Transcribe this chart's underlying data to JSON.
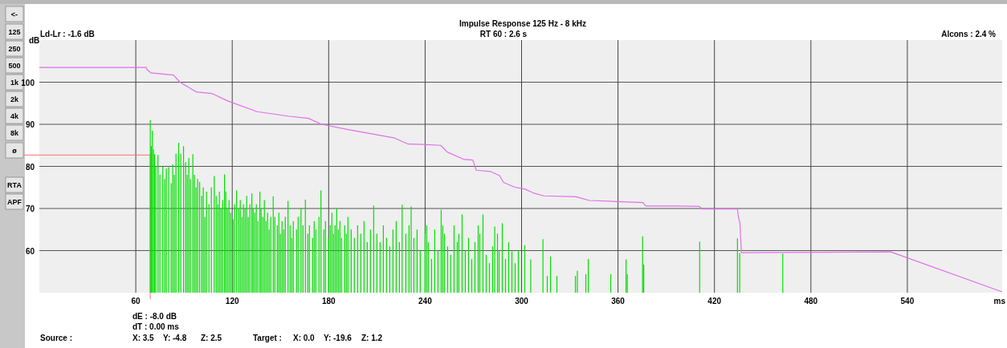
{
  "chart_data": {
    "type": "line",
    "title": "Impulse Response   125 Hz - 8 kHz",
    "xlabel": "ms",
    "ylabel": "dB",
    "xlim": [
      0,
      599
    ],
    "xticks": [
      60,
      120,
      180,
      240,
      300,
      360,
      420,
      480,
      540
    ],
    "ylim": [
      50,
      110
    ],
    "yticks": [
      60,
      70,
      80,
      90,
      100
    ],
    "grid": true,
    "ref_lines": [
      {
        "axis": "x",
        "value": 69,
        "color": "#ff7070"
      },
      {
        "axis": "y",
        "value": 82.7,
        "color": "#ff7070"
      }
    ],
    "annotations": [
      "Ld-Lr : -1.6 dB",
      "RT 60 : 2.6 s",
      "Alcons : 2.4 %",
      "dE : -8.0 dB",
      "dT : 0.00 ms",
      "Source :",
      "X: 3.5",
      "Y: -4.8",
      "Z: 2.5",
      "Target :",
      "X: 0.0",
      "Y: -19.6",
      "Z: 1.2",
      "<-",
      "125",
      "250",
      "500",
      "1k",
      "2k",
      "4k",
      "8k",
      "ø",
      "RTA",
      "APF"
    ],
    "series": [
      {
        "type": "bar",
        "color": "#00e000",
        "x": [
          69,
          69.6,
          70.3,
          71,
          71.7,
          72.5,
          73.8,
          75,
          76.8,
          78,
          79,
          80.5,
          82,
          83,
          84,
          85,
          86.7,
          88,
          89.7,
          91,
          92,
          93,
          94,
          95.5,
          96.5,
          97.5,
          98.5,
          99.7,
          101,
          102,
          103,
          104,
          105.5,
          107,
          108.8,
          110,
          111,
          112,
          113,
          114,
          115.2,
          116,
          117,
          118,
          119,
          120.5,
          121.5,
          122.7,
          124,
          125,
          126,
          127,
          128,
          129,
          130,
          131,
          132.2,
          133,
          134,
          135,
          136,
          137.2,
          138,
          139,
          140,
          141,
          142,
          143,
          144,
          145.5,
          146.5,
          148,
          149,
          150,
          151,
          152,
          153,
          154.7,
          156,
          157,
          158,
          160,
          161,
          162.8,
          164,
          165.5,
          167,
          168,
          170,
          171,
          172,
          174,
          175.2,
          177,
          178,
          180,
          181,
          182,
          183,
          184,
          185,
          186,
          187,
          188,
          190,
          191,
          192,
          194,
          196,
          198,
          200,
          202,
          204,
          206,
          208,
          210,
          212,
          214,
          216,
          218,
          220,
          222,
          224,
          225.7,
          228,
          230,
          231.3,
          233,
          235,
          237,
          240,
          241,
          242,
          244,
          246,
          248,
          250,
          251,
          252,
          254,
          256,
          258,
          260,
          261,
          263,
          265,
          267,
          269,
          271,
          273,
          274,
          276,
          278,
          280,
          282,
          283.3,
          285,
          286,
          288,
          290,
          292,
          294,
          296,
          298,
          302,
          305.7,
          313.3,
          316,
          318,
          322,
          333.5,
          334.7,
          340,
          341.5,
          355.5,
          365,
          365.8,
          375.3,
          376,
          410.8,
          434.3,
          435.7,
          462.5
        ],
        "values": [
          91,
          84.8,
          88.5,
          84,
          82.9,
          80,
          82.7,
          78,
          79.9,
          77,
          79.5,
          79.8,
          76,
          80.5,
          78,
          83,
          85.6,
          83,
          84.8,
          81,
          78,
          82,
          77,
          82.9,
          78,
          75,
          77,
          76.3,
          73,
          75,
          68,
          74,
          71,
          75,
          77.7,
          73,
          71,
          74,
          70,
          72,
          78.1,
          74,
          70,
          72,
          69,
          67.4,
          71,
          74.3,
          70,
          72,
          68,
          71,
          70,
          73,
          68,
          71,
          73.6,
          70,
          69,
          71,
          67,
          74,
          70,
          68,
          72,
          67,
          69,
          65,
          68,
          72.9,
          68,
          66,
          69,
          64,
          67,
          65,
          68,
          71.8,
          66,
          63,
          67,
          65,
          68,
          70,
          66,
          72.1,
          64,
          66,
          63,
          67,
          65,
          68,
          74.3,
          65,
          67,
          63,
          66,
          69,
          64,
          66,
          70,
          65,
          67,
          63,
          66,
          64,
          68,
          65,
          63,
          66,
          64,
          67,
          62,
          65,
          70.7,
          64,
          62,
          66,
          63,
          61,
          65,
          67,
          62,
          70.9,
          64,
          66,
          70.5,
          63,
          65,
          60,
          64,
          66,
          62,
          58,
          65,
          60,
          69.7,
          66,
          64,
          61,
          59,
          66,
          62,
          64,
          68.6,
          60,
          63,
          58,
          62,
          66,
          64,
          68.6,
          59,
          57,
          61,
          65.7,
          64,
          60,
          66.5,
          58,
          62,
          59.8,
          57,
          60,
          61.3,
          57.9,
          62.7,
          54,
          58.6,
          54,
          54,
          55.2,
          54.4,
          58,
          54.4,
          57.9,
          54.4,
          63.4,
          56.7,
          62.1,
          62.9,
          59.4,
          59.3
        ]
      },
      {
        "color": "#e070e8",
        "x": [
          0,
          66.5,
          67,
          69.5,
          83.5,
          87.5,
          97.5,
          107.5,
          117.5,
          135.5,
          155.5,
          167.5,
          175.5,
          191.5,
          211.5,
          220.5,
          229.5,
          238.8,
          249.7,
          253.8,
          263.8,
          269.7,
          271.8,
          280.5,
          286.3,
          288.8,
          295.5,
          302.2,
          307.2,
          313.8,
          333.8,
          342.2,
          362.2,
          375.5,
          377.2,
          395.5,
          410.5,
          412.5,
          434.3,
          435,
          435.8,
          436.8,
          529.7,
          599
        ],
        "values": [
          103.5,
          103.5,
          103,
          102.2,
          101.7,
          100,
          97.7,
          97.3,
          95.5,
          93,
          91.9,
          91.4,
          90,
          88.8,
          87.4,
          86.8,
          85.3,
          85.2,
          85,
          83.4,
          81.7,
          81.5,
          79.1,
          78.8,
          77.8,
          76.2,
          75.1,
          74.6,
          73.7,
          73,
          72.8,
          71.9,
          71.6,
          71.4,
          70.6,
          70.6,
          70.5,
          69.9,
          69.9,
          67.7,
          66.7,
          59.5,
          59.7,
          50.2
        ]
      }
    ]
  }
}
